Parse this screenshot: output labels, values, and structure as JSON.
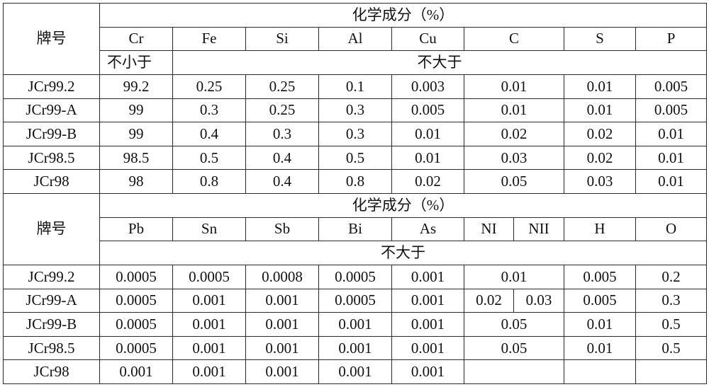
{
  "brand_label": "牌号",
  "composition_label": "化学成分（%）",
  "min_label": "不小于",
  "max_label": "不大于",
  "table1": {
    "elements": [
      "Cr",
      "Fe",
      "Si",
      "Al",
      "Cu",
      "C",
      "S",
      "P"
    ],
    "rows": [
      {
        "grade": "JCr99.2",
        "values": [
          "99.2",
          "0.25",
          "0.25",
          "0.1",
          "0.003",
          "0.01",
          "0.01",
          "0.005"
        ]
      },
      {
        "grade": "JCr99-A",
        "values": [
          "99",
          "0.3",
          "0.25",
          "0.3",
          "0.005",
          "0.01",
          "0.01",
          "0.005"
        ]
      },
      {
        "grade": "JCr99-B",
        "values": [
          "99",
          "0.4",
          "0.3",
          "0.3",
          "0.01",
          "0.02",
          "0.02",
          "0.01"
        ]
      },
      {
        "grade": "JCr98.5",
        "values": [
          "98.5",
          "0.5",
          "0.4",
          "0.5",
          "0.01",
          "0.03",
          "0.02",
          "0.01"
        ]
      },
      {
        "grade": "JCr98",
        "values": [
          "98",
          "0.8",
          "0.4",
          "0.8",
          "0.02",
          "0.05",
          "0.03",
          "0.01"
        ]
      }
    ]
  },
  "table2": {
    "elements": [
      "Pb",
      "Sn",
      "Sb",
      "Bi",
      "As",
      "NI",
      "NII",
      "H",
      "O"
    ],
    "rows": [
      {
        "grade": "JCr99.2",
        "pb": "0.0005",
        "sn": "0.0005",
        "sb": "0.0008",
        "bi": "0.0005",
        "as": "0.001",
        "n": "0.01",
        "h": "0.005",
        "o": "0.2"
      },
      {
        "grade": "JCr99-A",
        "pb": "0.0005",
        "sn": "0.001",
        "sb": "0.001",
        "bi": "0.0005",
        "as": "0.001",
        "n1": "0.02",
        "n2": "0.03",
        "h": "0.005",
        "o": "0.3"
      },
      {
        "grade": "JCr99-B",
        "pb": "0.0005",
        "sn": "0.001",
        "sb": "0.001",
        "bi": "0.001",
        "as": "0.001",
        "n": "0.05",
        "h": "0.01",
        "o": "0.5"
      },
      {
        "grade": "JCr98.5",
        "pb": "0.0005",
        "sn": "0.001",
        "sb": "0.001",
        "bi": "0.001",
        "as": "0.001",
        "n": "0.05",
        "h": "0.01",
        "o": "0.5"
      },
      {
        "grade": "JCr98",
        "pb": "0.001",
        "sn": "0.001",
        "sb": "0.001",
        "bi": "0.001",
        "as": "0.001"
      }
    ]
  }
}
